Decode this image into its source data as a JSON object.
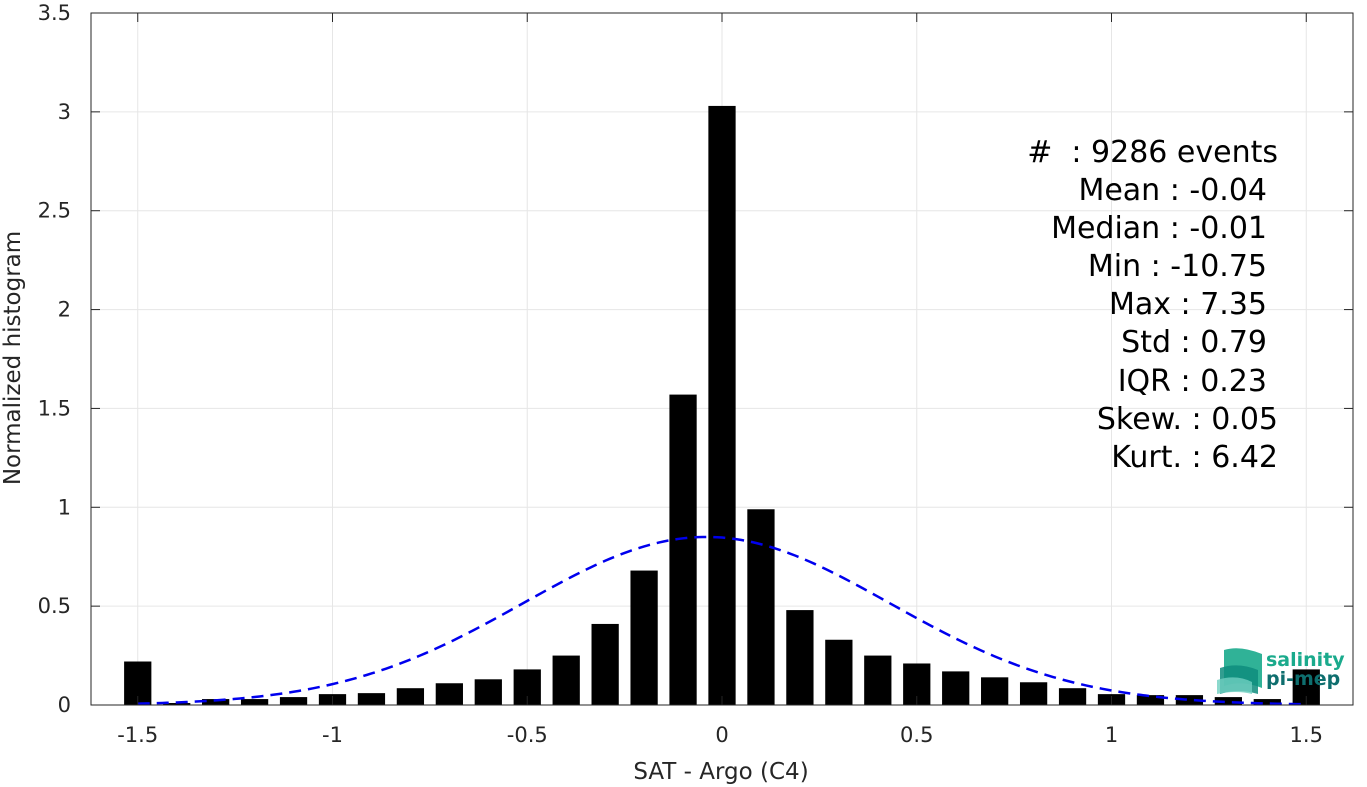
{
  "chart_data": {
    "type": "bar",
    "xlabel": "SAT - Argo (C4)",
    "ylabel": "Normalized histogram",
    "xlim": [
      -1.62,
      1.62
    ],
    "ylim": [
      0,
      3.5
    ],
    "xticks": [
      -1.5,
      -1,
      -0.5,
      0,
      0.5,
      1,
      1.5
    ],
    "xtick_labels": [
      "-1.5",
      "-1",
      "-0.5",
      "0",
      "0.5",
      "1",
      "1.5"
    ],
    "yticks": [
      0,
      0.5,
      1,
      1.5,
      2,
      2.5,
      3,
      3.5
    ],
    "ytick_labels": [
      "0",
      "0.5",
      "1",
      "1.5",
      "2",
      "2.5",
      "3",
      "3.5"
    ],
    "grid": true,
    "bar_color": "#000000",
    "bar_width": 0.07,
    "x": [
      -1.5,
      -1.4,
      -1.3,
      -1.2,
      -1.1,
      -1.0,
      -0.9,
      -0.8,
      -0.7,
      -0.6,
      -0.5,
      -0.4,
      -0.3,
      -0.2,
      -0.1,
      0.0,
      0.1,
      0.2,
      0.3,
      0.4,
      0.5,
      0.6,
      0.7,
      0.8,
      0.9,
      1.0,
      1.1,
      1.2,
      1.3,
      1.4,
      1.5
    ],
    "values": [
      0.22,
      0.01,
      0.03,
      0.03,
      0.04,
      0.055,
      0.06,
      0.085,
      0.11,
      0.13,
      0.18,
      0.25,
      0.41,
      0.68,
      1.57,
      3.03,
      0.99,
      0.48,
      0.33,
      0.25,
      0.21,
      0.17,
      0.14,
      0.115,
      0.085,
      0.055,
      0.05,
      0.05,
      0.04,
      0.03,
      0.18
    ],
    "fit_curve": {
      "type": "normal",
      "mean": -0.04,
      "std": 0.47,
      "peak": 0.85,
      "color": "#0000ee",
      "style": "dashed"
    },
    "stats": {
      "line1": "#  : 9286 events",
      "line2": "Mean : -0.04",
      "line3": "Median : -0.01",
      "line4": "Min : -10.75",
      "line5": "Max : 7.35",
      "line6": "Std : 0.79",
      "line7": "IQR : 0.23",
      "line8": "Skew. : 0.05",
      "line9": "Kurt. : 6.42"
    }
  },
  "logo": {
    "line1": "salinity",
    "line2": "pi-mep",
    "color1": "#1aaa8c",
    "color2": "#0e6e6e"
  }
}
